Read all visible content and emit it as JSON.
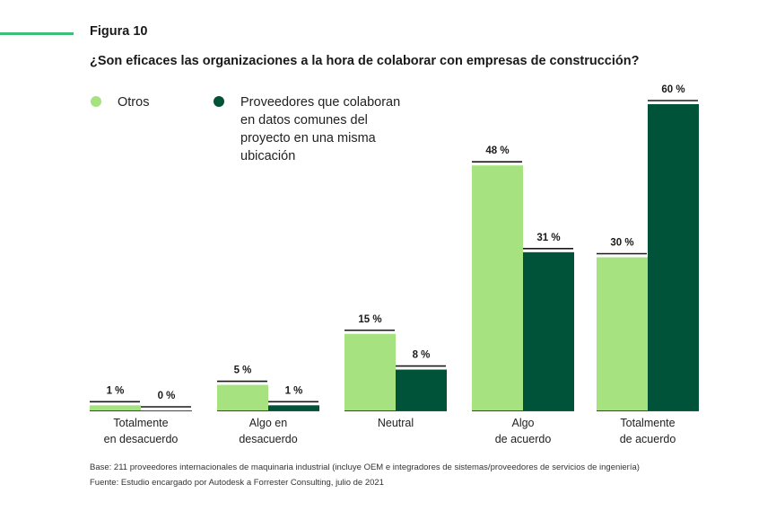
{
  "figure_label": "Figura 10",
  "title": "¿Son eficaces las organizaciones a la hora de colaborar con empresas de construcción?",
  "colors": {
    "accent": "#3dbf7b",
    "light": "#a6e27f",
    "dark": "#005238"
  },
  "legend": [
    {
      "label": "Otros",
      "color": "#a6e27f"
    },
    {
      "label": "Proveedores que colaboran en datos comunes del proyecto en una misma ubicación",
      "color": "#005238"
    }
  ],
  "chart_data": {
    "type": "bar",
    "categories": [
      [
        "Totalmente",
        "en desacuerdo"
      ],
      [
        "Algo en",
        "desacuerdo"
      ],
      [
        "Neutral"
      ],
      [
        "Algo",
        "de acuerdo"
      ],
      [
        "Totalmente",
        "de acuerdo"
      ]
    ],
    "series": [
      {
        "name": "Otros",
        "values": [
          1,
          5,
          15,
          48,
          30
        ],
        "labels": [
          "1 %",
          "5 %",
          "15 %",
          "48 %",
          "30 %"
        ],
        "color": "#a6e27f"
      },
      {
        "name": "Proveedores que colaboran en datos comunes del proyecto en una misma ubicación",
        "values": [
          0,
          1,
          8,
          31,
          60
        ],
        "labels": [
          "0 %",
          "1 %",
          "8 %",
          "31 %",
          "60 %"
        ],
        "color": "#005238"
      }
    ],
    "ylim": [
      0,
      60
    ],
    "grid": false,
    "legend_position": "top-left"
  },
  "footnotes": {
    "base": "Base: 211 proveedores internacionales de maquinaria industrial (incluye OEM e integradores de sistemas/proveedores de servicios de ingeniería)",
    "source": "Fuente: Estudio encargado por Autodesk a Forrester Consulting, julio de 2021"
  }
}
